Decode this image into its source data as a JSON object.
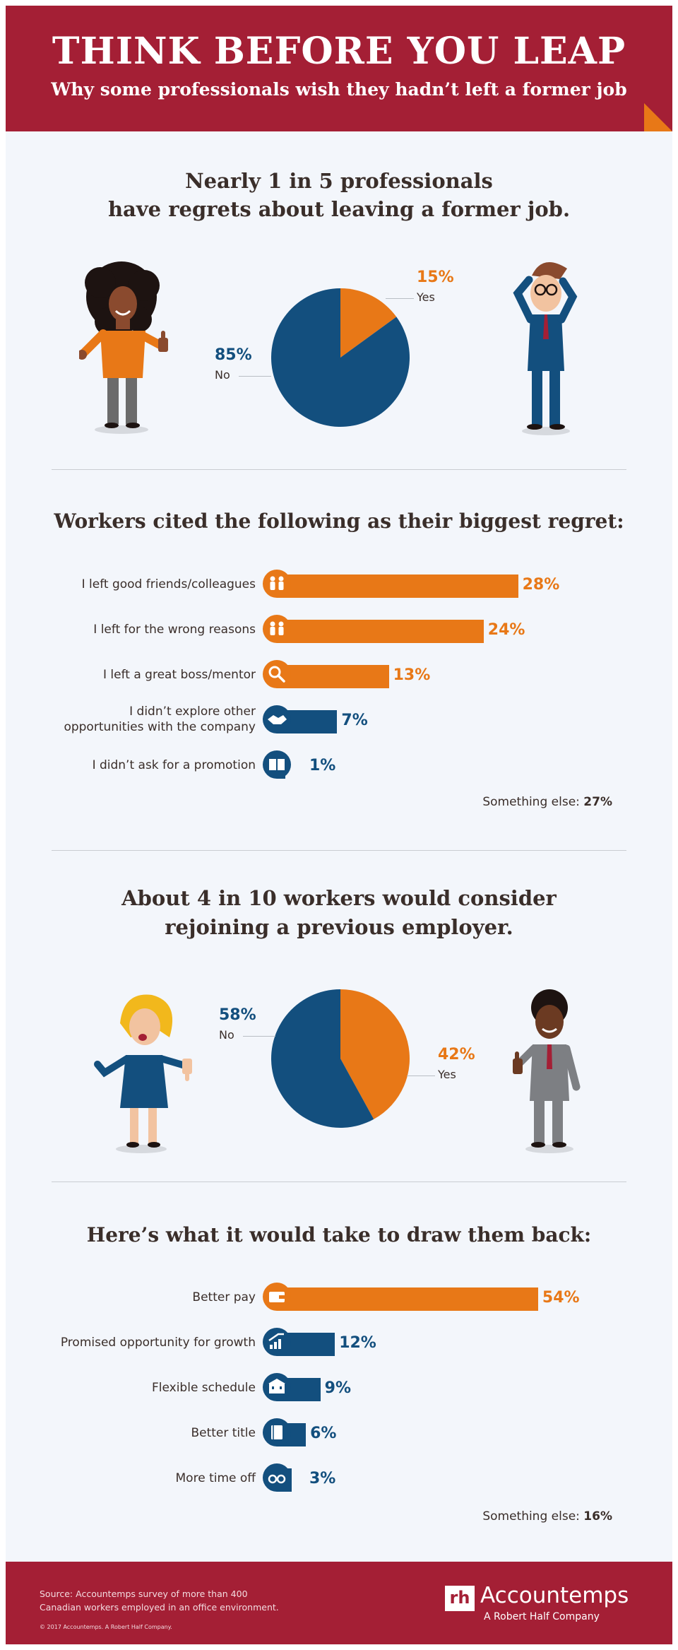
{
  "header": {
    "title": "THINK BEFORE YOU LEAP",
    "subtitle": "Why some professionals wish they hadn’t left a former job"
  },
  "section1": {
    "heading_line1": "Nearly 1 in 5 professionals",
    "heading_line2": "have regrets about leaving a former job."
  },
  "section2": {
    "heading": "Workers cited the following as their biggest regret:"
  },
  "section3": {
    "heading_line1": "About 4 in 10 workers would consider",
    "heading_line2": "rejoining a previous employer."
  },
  "section4": {
    "heading": "Here’s what it would take to draw them back:"
  },
  "colors": {
    "orange": "#e87817",
    "blue": "#134f7e",
    "red": "#a41f35"
  },
  "chart_data": [
    {
      "type": "pie",
      "slices": [
        {
          "label": "Yes",
          "value": 15,
          "display": "15%",
          "color": "#e87817"
        },
        {
          "label": "No",
          "value": 85,
          "display": "85%",
          "color": "#134f7e"
        }
      ]
    },
    {
      "type": "bar",
      "orientation": "horizontal",
      "categories": [
        "I left good friends/colleagues",
        "I left for the wrong reasons",
        "I left a great boss/mentor",
        "I didn’t explore other opportunities with the company",
        "I didn’t ask for a promotion"
      ],
      "label_lines": [
        [
          "I left good friends/colleagues"
        ],
        [
          "I left for the wrong reasons"
        ],
        [
          "I left a great boss/mentor"
        ],
        [
          "I didn’t explore other",
          "opportunities with the company"
        ],
        [
          "I didn’t ask for a promotion"
        ]
      ],
      "values": [
        28,
        24,
        13,
        7,
        1
      ],
      "value_labels": [
        "28%",
        "24%",
        "13%",
        "7%",
        "1%"
      ],
      "colors": [
        "#e87817",
        "#e87817",
        "#e87817",
        "#134f7e",
        "#134f7e"
      ],
      "icons": [
        "people-icon",
        "people-icon",
        "magnifier-icon",
        "handshake-icon",
        "book-icon"
      ],
      "other": {
        "label": "Something else:",
        "value": 27,
        "display": "27%"
      }
    },
    {
      "type": "pie",
      "slices": [
        {
          "label": "Yes",
          "value": 42,
          "display": "42%",
          "color": "#e87817"
        },
        {
          "label": "No",
          "value": 58,
          "display": "58%",
          "color": "#134f7e"
        }
      ]
    },
    {
      "type": "bar",
      "orientation": "horizontal",
      "categories": [
        "Better pay",
        "Promised opportunity for growth",
        "Flexible schedule",
        "Better title",
        "More time off"
      ],
      "label_lines": [
        [
          "Better pay"
        ],
        [
          "Promised opportunity for growth"
        ],
        [
          "Flexible schedule"
        ],
        [
          "Better title"
        ],
        [
          "More time off"
        ]
      ],
      "values": [
        54,
        12,
        9,
        6,
        3
      ],
      "value_labels": [
        "54%",
        "12%",
        "9%",
        "6%",
        "3%"
      ],
      "colors": [
        "#e87817",
        "#134f7e",
        "#134f7e",
        "#134f7e",
        "#134f7e"
      ],
      "icons": [
        "wallet-icon",
        "growth-chart-icon",
        "building-icon",
        "notebook-icon",
        "glasses-icon"
      ],
      "other": {
        "label": "Something else:",
        "value": 16,
        "display": "16%"
      }
    }
  ],
  "footer": {
    "source_line1": "Source: Accountemps survey of more than 400",
    "source_line2": "Canadian workers employed in an office environment.",
    "copyright": "© 2017 Accountemps. A Robert Half Company.",
    "logo_mark": "rh",
    "brand": "Accountemps",
    "tagline": "A Robert Half Company"
  }
}
